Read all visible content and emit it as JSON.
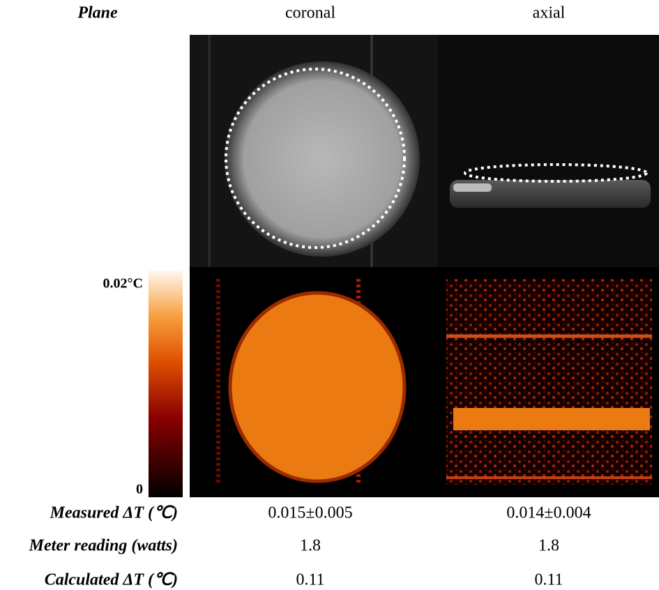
{
  "header": {
    "label": "Plane",
    "columns": [
      "coronal",
      "axial"
    ]
  },
  "colorbar": {
    "max_label": "0.02°C",
    "min_label": "0"
  },
  "rows": [
    {
      "label": "Measured ΔT (℃)",
      "values": [
        "0.015±0.005",
        "0.014±0.004"
      ]
    },
    {
      "label": "Meter reading (watts)",
      "values": [
        1.8,
        1.8
      ]
    },
    {
      "label": "Calculated ΔT (℃)",
      "values": [
        0.11,
        0.11
      ]
    }
  ]
}
